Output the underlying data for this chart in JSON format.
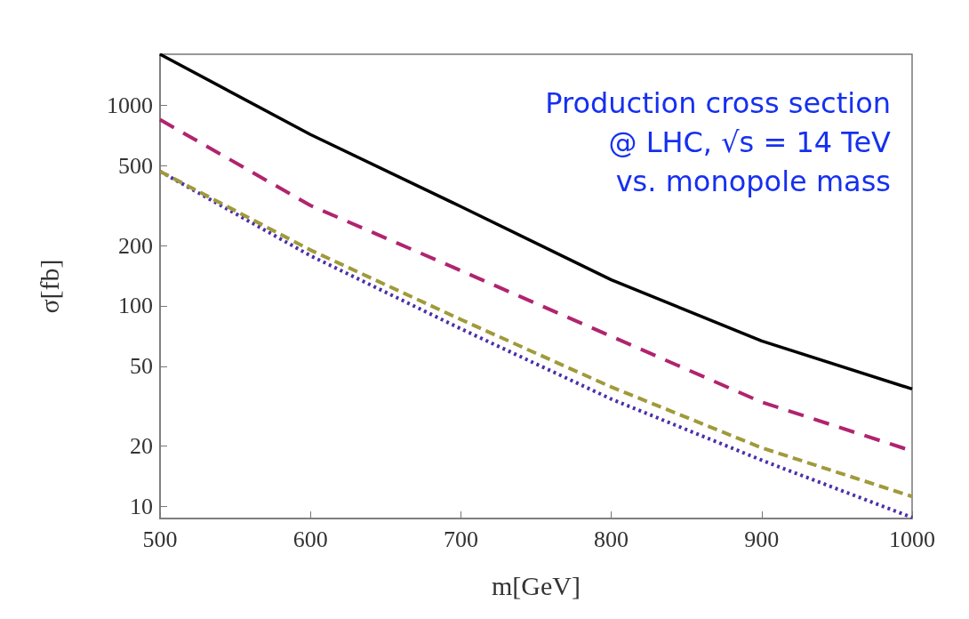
{
  "chart_data": {
    "type": "line",
    "xlabel": "m[GeV]",
    "ylabel": "σ[fb]",
    "annotations": [
      "Production cross section",
      "@ LHC, √s = 14 TeV",
      "vs. monopole mass"
    ],
    "x": [
      500,
      600,
      700,
      800,
      900,
      1000
    ],
    "series": [
      {
        "color": "#000000",
        "line_style": "solid",
        "values": [
          1800,
          716,
          313,
          135,
          66.8,
          38.5
        ]
      },
      {
        "color": "#b0246e",
        "line_style": "dashed",
        "values": [
          849,
          317,
          150,
          70.5,
          33.1,
          18.9
        ]
      },
      {
        "color": "#a09a3c",
        "line_style": "dashed",
        "values": [
          469,
          190,
          85.5,
          39.4,
          19.6,
          11.2
        ]
      },
      {
        "color": "#4b2fa8",
        "line_style": "dotted",
        "values": [
          469,
          178,
          76.9,
          34.3,
          17.0,
          8.8
        ]
      }
    ],
    "log": "y",
    "xlim": [
      500,
      1000
    ],
    "xticks": [
      500,
      600,
      700,
      800,
      900,
      1000
    ],
    "ylim": [
      8.7,
      1800
    ],
    "yticks": [
      10,
      20,
      50,
      100,
      200,
      500,
      1000
    ],
    "marker": "none"
  }
}
